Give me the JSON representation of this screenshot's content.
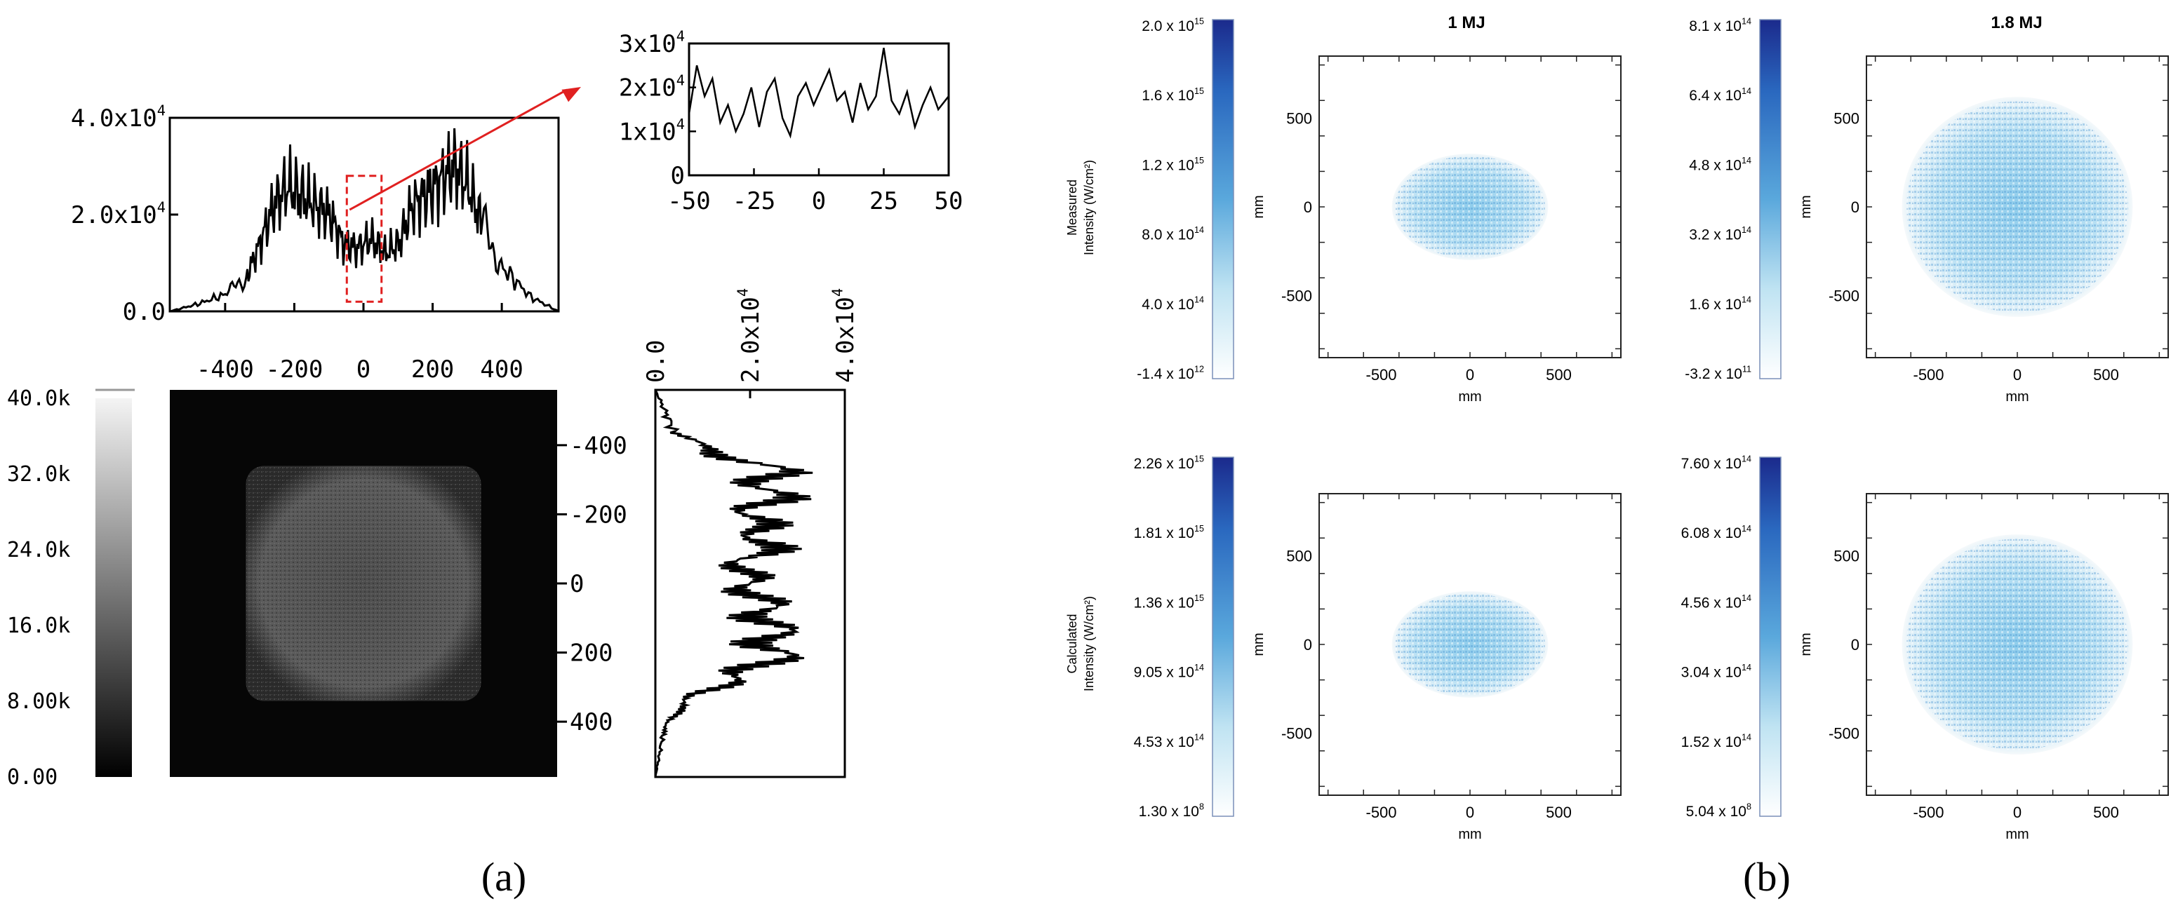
{
  "panel_labels": {
    "a": "(a)",
    "b": "(b)"
  },
  "panel_a": {
    "colorbar_ticks": [
      "40.0k",
      "32.0k",
      "24.0k",
      "16.0k",
      "8.00k",
      "0.00"
    ],
    "top_profile": {
      "y_ticks": [
        {
          "base": "4.0x10",
          "exp": "4"
        },
        {
          "base": "2.0x10",
          "exp": "4"
        },
        {
          "base": "0.0",
          "exp": ""
        }
      ],
      "x_ticks": [
        "-400",
        "-200",
        "0",
        "200",
        "400"
      ]
    },
    "inset": {
      "y_ticks": [
        {
          "base": "3x10",
          "exp": "4"
        },
        {
          "base": "2x10",
          "exp": "4"
        },
        {
          "base": "1x10",
          "exp": "4"
        },
        {
          "base": "0",
          "exp": ""
        }
      ],
      "x_ticks": [
        "-50",
        "-25",
        "0",
        "25",
        "50"
      ]
    },
    "side_profile": {
      "y_ticks": [
        "-400",
        "-200",
        "0",
        "200",
        "400"
      ],
      "x_ticks": [
        {
          "base": "0.0",
          "exp": ""
        },
        {
          "base": "2.0x10",
          "exp": "4"
        },
        {
          "base": "4.0x10",
          "exp": "4"
        }
      ]
    }
  },
  "panel_b": {
    "column_titles": [
      "1 MJ",
      "1.8 MJ"
    ],
    "row_labels": [
      {
        "line1": "Measured",
        "line2": "Intensity (W/cm²)"
      },
      {
        "line1": "Calculated",
        "line2": "Intensity (W/cm²)"
      }
    ],
    "axis_label": "mm",
    "axis_ticks": [
      "-500",
      "0",
      "500"
    ],
    "colorbars": [
      {
        "id": "m1",
        "ticks": [
          {
            "base": "2.0 x 10",
            "exp": "15"
          },
          {
            "base": "1.6 x 10",
            "exp": "15"
          },
          {
            "base": "1.2 x 10",
            "exp": "15"
          },
          {
            "base": "8.0 x 10",
            "exp": "14"
          },
          {
            "base": "4.0 x 10",
            "exp": "14"
          },
          {
            "base": "-1.4 x 10",
            "exp": "12"
          }
        ]
      },
      {
        "id": "m2",
        "ticks": [
          {
            "base": "8.1 x 10",
            "exp": "14"
          },
          {
            "base": "6.4 x 10",
            "exp": "14"
          },
          {
            "base": "4.8 x 10",
            "exp": "14"
          },
          {
            "base": "3.2 x 10",
            "exp": "14"
          },
          {
            "base": "1.6 x 10",
            "exp": "14"
          },
          {
            "base": "-3.2 x 10",
            "exp": "11"
          }
        ]
      },
      {
        "id": "c1",
        "ticks": [
          {
            "base": "2.26 x 10",
            "exp": "15"
          },
          {
            "base": "1.81 x 10",
            "exp": "15"
          },
          {
            "base": "1.36 x 10",
            "exp": "15"
          },
          {
            "base": "9.05 x 10",
            "exp": "14"
          },
          {
            "base": "4.53 x 10",
            "exp": "14"
          },
          {
            "base": "1.30 x 10",
            "exp": "8"
          }
        ]
      },
      {
        "id": "c2",
        "ticks": [
          {
            "base": "7.60 x 10",
            "exp": "14"
          },
          {
            "base": "6.08 x 10",
            "exp": "14"
          },
          {
            "base": "4.56 x 10",
            "exp": "14"
          },
          {
            "base": "3.04 x 10",
            "exp": "14"
          },
          {
            "base": "1.52 x 10",
            "exp": "14"
          },
          {
            "base": "5.04 x 10",
            "exp": "8"
          }
        ]
      }
    ]
  },
  "chart_data": [
    {
      "type": "heatmap",
      "name": "beam-image",
      "x_ticks": [
        -400,
        -200,
        0,
        200,
        400
      ],
      "y_ticks": [
        -400,
        -200,
        0,
        200,
        400
      ],
      "xlim": [
        -560,
        560
      ],
      "ylim": [
        -560,
        560
      ],
      "colorbar_range": [
        0,
        40000
      ],
      "colorbar_ticks": [
        40000,
        32000,
        24000,
        16000,
        8000,
        0
      ],
      "spot": "square",
      "spot_half_width": 340
    },
    {
      "type": "line",
      "name": "horizontal-lineout",
      "xlim": [
        -560,
        560
      ],
      "ylim": [
        0,
        40000
      ],
      "x": [
        -560,
        -480,
        -400,
        -340,
        -300,
        -260,
        -220,
        -180,
        -140,
        -100,
        -60,
        -20,
        20,
        60,
        100,
        140,
        180,
        220,
        260,
        300,
        340,
        400,
        480,
        560
      ],
      "y": [
        0,
        1500,
        3500,
        7000,
        14000,
        22000,
        26000,
        24000,
        22000,
        20000,
        14000,
        13000,
        15000,
        12000,
        14000,
        22000,
        24000,
        27000,
        30000,
        26000,
        18000,
        9000,
        3000,
        0
      ],
      "highlight_window": [
        -50,
        50
      ]
    },
    {
      "type": "line",
      "name": "zoom-inset",
      "xlim": [
        -50,
        50
      ],
      "ylim": [
        0,
        30000
      ],
      "x": [
        -50,
        -47,
        -44,
        -41,
        -38,
        -35,
        -32,
        -29,
        -26,
        -23,
        -20,
        -17,
        -14,
        -11,
        -8,
        -5,
        -2,
        1,
        4,
        7,
        10,
        13,
        16,
        19,
        22,
        25,
        28,
        31,
        34,
        37,
        40,
        43,
        46,
        50
      ],
      "y": [
        14000,
        25000,
        18000,
        22000,
        12000,
        16000,
        10000,
        14000,
        20000,
        11000,
        19000,
        22000,
        13000,
        9000,
        18000,
        21000,
        16000,
        20000,
        24000,
        17000,
        19000,
        12000,
        21000,
        15000,
        18000,
        29000,
        17000,
        14000,
        19000,
        11000,
        16000,
        20000,
        15000,
        18000
      ]
    },
    {
      "type": "line",
      "name": "vertical-lineout",
      "orientation": "vertical",
      "xlim": [
        0,
        40000
      ],
      "ylim": [
        -560,
        560
      ],
      "y": [
        -560,
        -500,
        -440,
        -400,
        -360,
        -320,
        -280,
        -240,
        -200,
        -160,
        -120,
        -80,
        -40,
        0,
        40,
        80,
        120,
        160,
        200,
        240,
        280,
        320,
        360,
        400,
        440,
        500,
        560
      ],
      "x": [
        0,
        2000,
        4000,
        9000,
        18000,
        26000,
        23000,
        25000,
        20000,
        22000,
        24000,
        21000,
        18000,
        20000,
        22000,
        23000,
        25000,
        24000,
        26000,
        22000,
        16000,
        9000,
        5000,
        3000,
        1500,
        800,
        0
      ]
    },
    {
      "type": "heatmap",
      "name": "measured-1MJ",
      "column_title": "1 MJ",
      "xlim": [
        -850,
        850
      ],
      "ylim": [
        -850,
        850
      ],
      "x_ticks": [
        -500,
        0,
        500
      ],
      "y_ticks": [
        -500,
        0,
        500
      ],
      "spot": "ellipse",
      "spot_radii": [
        440,
        300
      ],
      "colorbar_range": [
        -1400000000000.0,
        2000000000000000.0
      ]
    },
    {
      "type": "heatmap",
      "name": "measured-1.8MJ",
      "column_title": "1.8 MJ",
      "xlim": [
        -850,
        850
      ],
      "ylim": [
        -850,
        850
      ],
      "x_ticks": [
        -500,
        0,
        500
      ],
      "y_ticks": [
        -500,
        0,
        500
      ],
      "spot": "ellipse",
      "spot_radii": [
        650,
        620
      ],
      "colorbar_range": [
        -320000000000.0,
        810000000000000.0
      ]
    },
    {
      "type": "heatmap",
      "name": "calculated-1MJ",
      "xlim": [
        -850,
        850
      ],
      "ylim": [
        -850,
        850
      ],
      "x_ticks": [
        -500,
        0,
        500
      ],
      "y_ticks": [
        -500,
        0,
        500
      ],
      "spot": "ellipse",
      "spot_radii": [
        440,
        300
      ],
      "colorbar_range": [
        130000000.0,
        2260000000000000.0
      ]
    },
    {
      "type": "heatmap",
      "name": "calculated-1.8MJ",
      "xlim": [
        -850,
        850
      ],
      "ylim": [
        -850,
        850
      ],
      "x_ticks": [
        -500,
        0,
        500
      ],
      "y_ticks": [
        -500,
        0,
        500
      ],
      "spot": "ellipse",
      "spot_radii": [
        650,
        620
      ],
      "colorbar_range": [
        504000000.0,
        760000000000000.0
      ]
    }
  ]
}
